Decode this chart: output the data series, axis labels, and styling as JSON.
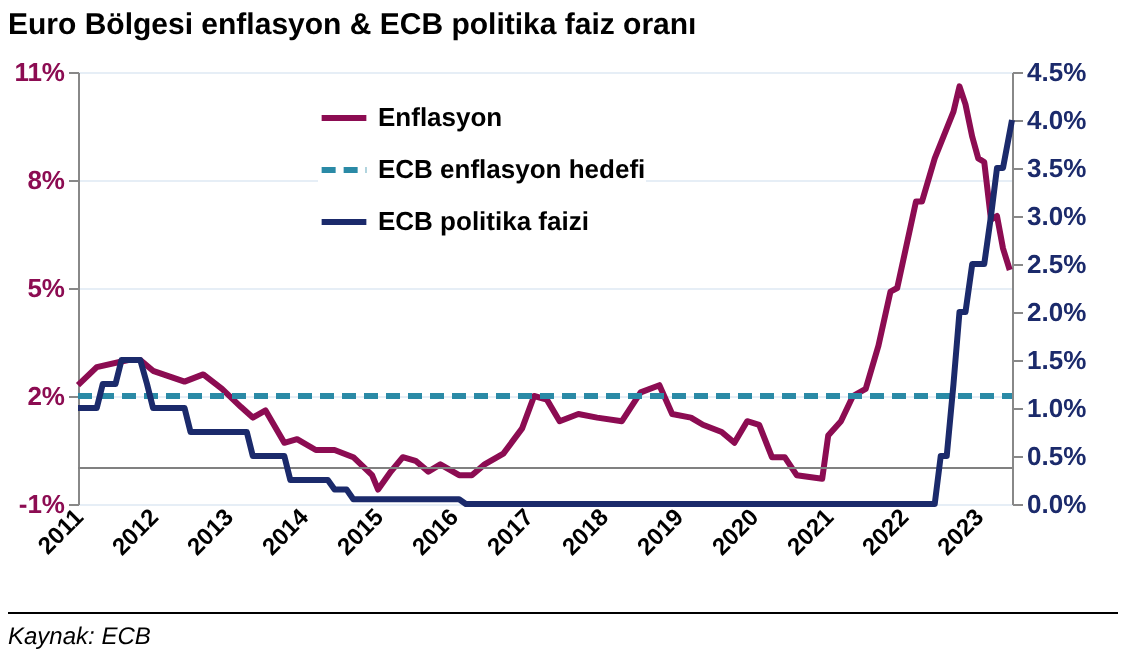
{
  "chart_data": {
    "type": "line",
    "title": "Euro Bölgesi enflasyon & ECB politika faiz oranı",
    "annotations": [
      "Kaynak: ECB"
    ],
    "xlim": [
      2011,
      2023.45
    ],
    "xticks": [
      2011,
      2012,
      2013,
      2014,
      2015,
      2016,
      2017,
      2018,
      2019,
      2020,
      2021,
      2022,
      2023
    ],
    "ylim": [
      -1,
      11
    ],
    "yticks": [
      {
        "value": -1,
        "label": "-1%"
      },
      {
        "value": 2,
        "label": "2%"
      },
      {
        "value": 5,
        "label": "5%"
      },
      {
        "value": 8,
        "label": "8%"
      },
      {
        "value": 11,
        "label": "11%"
      }
    ],
    "y2lim": [
      0,
      4.5
    ],
    "y2ticks": [
      {
        "value": 0,
        "label": "0.0%"
      },
      {
        "value": 0.5,
        "label": "0.5%"
      },
      {
        "value": 1,
        "label": "1.0%"
      },
      {
        "value": 1.5,
        "label": "1.5%"
      },
      {
        "value": 2,
        "label": "2.0%"
      },
      {
        "value": 2.5,
        "label": "2.5%"
      },
      {
        "value": 3,
        "label": "3.0%"
      },
      {
        "value": 3.5,
        "label": "3.5%"
      },
      {
        "value": 4,
        "label": "4.0%"
      },
      {
        "value": 4.5,
        "label": "4.5%"
      }
    ],
    "grid": "y",
    "legend": "top",
    "marker": "none",
    "ref_lines": [
      {
        "axis": "y",
        "value": 0,
        "color": "#808080"
      }
    ],
    "series": [
      {
        "name": "Enflasyon",
        "color": "#8c0c52",
        "line_style": "solid",
        "x": [
          2011,
          2011.25,
          2011.67,
          2011.83,
          2012,
          2012.42,
          2012.67,
          2012.92,
          2013.17,
          2013.33,
          2013.5,
          2013.75,
          2013.92,
          2014.17,
          2014.42,
          2014.67,
          2014.92,
          2015,
          2015.17,
          2015.33,
          2015.5,
          2015.67,
          2015.83,
          2016.08,
          2016.25,
          2016.42,
          2016.67,
          2016.92,
          2017.08,
          2017.25,
          2017.42,
          2017.67,
          2017.92,
          2018.25,
          2018.5,
          2018.75,
          2018.92,
          2019.17,
          2019.33,
          2019.58,
          2019.75,
          2019.92,
          2020.08,
          2020.25,
          2020.42,
          2020.58,
          2020.92,
          2021,
          2021.17,
          2021.33,
          2021.5,
          2021.67,
          2021.83,
          2021.92,
          2022.17,
          2022.25,
          2022.42,
          2022.67,
          2022.75,
          2022.83,
          2022.92,
          2023,
          2023.08,
          2023.17,
          2023.25,
          2023.33,
          2023.42
        ],
        "values": [
          2.3,
          2.8,
          3.0,
          3.0,
          2.7,
          2.4,
          2.6,
          2.2,
          1.7,
          1.4,
          1.6,
          0.7,
          0.8,
          0.5,
          0.5,
          0.3,
          -0.2,
          -0.6,
          -0.1,
          0.3,
          0.2,
          -0.1,
          0.1,
          -0.2,
          -0.2,
          0.1,
          0.4,
          1.1,
          2.0,
          1.9,
          1.3,
          1.5,
          1.4,
          1.3,
          2.1,
          2.3,
          1.5,
          1.4,
          1.2,
          1.0,
          0.7,
          1.3,
          1.2,
          0.3,
          0.3,
          -0.2,
          -0.3,
          0.9,
          1.3,
          2.0,
          2.2,
          3.4,
          4.9,
          5.0,
          7.4,
          7.4,
          8.6,
          9.9,
          10.6,
          10.1,
          9.2,
          8.6,
          8.5,
          6.9,
          7.0,
          6.1,
          5.5
        ]
      },
      {
        "name": "ECB enflasyon hedefi",
        "color": "#2a8aa6",
        "line_style": "dashed",
        "x": [
          2011,
          2023.45
        ],
        "values": [
          2,
          2
        ]
      },
      {
        "name": "ECB politika faizi",
        "color": "#1b2a6b",
        "line_style": "solid",
        "axis": "y2",
        "x": [
          2011,
          2011.25,
          2011.33,
          2011.5,
          2011.58,
          2011.83,
          2011.92,
          2012,
          2012.42,
          2012.5,
          2013.25,
          2013.33,
          2013.75,
          2013.83,
          2014.33,
          2014.42,
          2014.58,
          2014.67,
          2016.08,
          2016.17,
          2022.42,
          2022.5,
          2022.58,
          2022.67,
          2022.75,
          2022.83,
          2022.92,
          2023.08,
          2023.17,
          2023.25,
          2023.33,
          2023.45
        ],
        "values": [
          1.0,
          1.0,
          1.25,
          1.25,
          1.5,
          1.5,
          1.25,
          1.0,
          1.0,
          0.75,
          0.75,
          0.5,
          0.5,
          0.25,
          0.25,
          0.15,
          0.15,
          0.05,
          0.05,
          0.0,
          0.0,
          0.5,
          0.5,
          1.25,
          2.0,
          2.0,
          2.5,
          2.5,
          3.0,
          3.5,
          3.5,
          4.0
        ]
      }
    ]
  }
}
